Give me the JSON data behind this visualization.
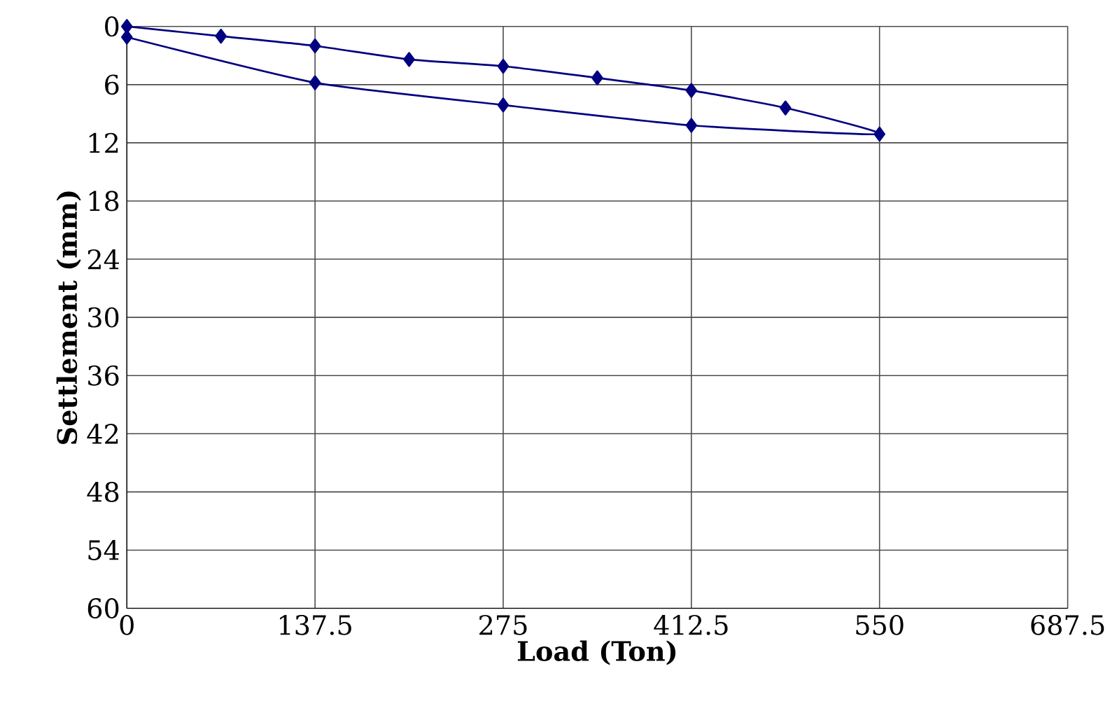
{
  "chart_data": {
    "type": "line",
    "xlabel": "Load (Ton)",
    "ylabel": "Settlement (mm)",
    "x": [
      0,
      68.75,
      137.5,
      206.25,
      275,
      343.75,
      412.5,
      481.25,
      550,
      412.5,
      275,
      137.5,
      0
    ],
    "series": [
      {
        "color": "#000080",
        "values": [
          0,
          1.0,
          2.0,
          3.4,
          4.1,
          5.3,
          6.6,
          8.4,
          11.1,
          10.2,
          8.1,
          5.8,
          1.1
        ]
      }
    ],
    "xlim": [
      0,
      687.5
    ],
    "xticks": [
      0,
      137.5,
      275,
      412.5,
      550,
      687.5
    ],
    "ylim": [
      60,
      0
    ],
    "yticks": [
      0,
      6,
      12,
      18,
      24,
      30,
      36,
      42,
      48,
      54,
      60
    ],
    "grid": true,
    "marker": "diamond",
    "line_style": "solid"
  }
}
